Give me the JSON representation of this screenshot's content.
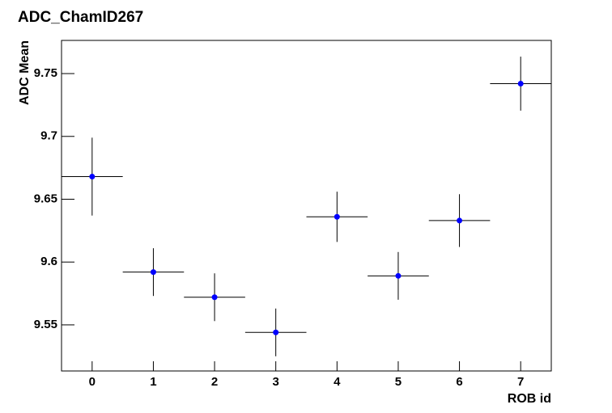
{
  "chart_data": {
    "type": "scatter",
    "title": "ADC_ChamID267",
    "x_label": "ROB id",
    "y_label": "ADC Mean",
    "x": [
      0,
      1,
      2,
      3,
      4,
      5,
      6,
      7
    ],
    "series": [
      {
        "color": "#0000ff",
        "values": [
          9.668,
          9.592,
          9.572,
          9.544,
          9.636,
          9.589,
          9.633,
          9.742
        ],
        "errors": [
          0.031,
          0.019,
          0.019,
          0.019,
          0.02,
          0.019,
          0.021,
          0.0215
        ],
        "x_errors": [
          0.5,
          0.5,
          0.5,
          0.5,
          0.5,
          0.5,
          0.5,
          0.5
        ]
      }
    ],
    "xlim": [
      -0.5,
      7.5
    ],
    "xticks": [
      0,
      1,
      2,
      3,
      4,
      5,
      6,
      7
    ],
    "ylim": [
      9.5133,
      9.7764
    ],
    "yticks": [
      9.55,
      9.6,
      9.65,
      9.7,
      9.75
    ],
    "grid": false
  }
}
